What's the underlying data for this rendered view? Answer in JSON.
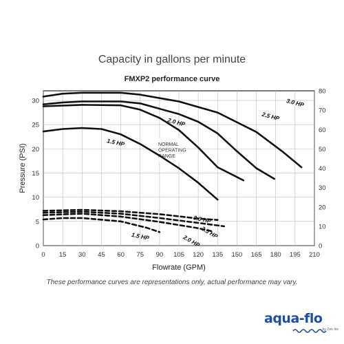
{
  "page": {
    "heading": "Capacity in gallons per minute",
    "disclaimer": "These performance curves are representations only, actual performance may vary.",
    "logo_text": "aqua-flo",
    "logo_sub": "by Zen Inc"
  },
  "chart_data": {
    "type": "line",
    "title": "FMXP2 performance curve",
    "xlabel": "Flowrate (GPM)",
    "ylabel": "Pressure (PSI)",
    "xlim": [
      0,
      210
    ],
    "ylim": [
      0,
      32
    ],
    "y2lim": [
      0,
      80
    ],
    "xticks": [
      0,
      15,
      30,
      45,
      60,
      75,
      90,
      105,
      120,
      135,
      150,
      165,
      180,
      195,
      210
    ],
    "yticks": [
      0,
      5,
      10,
      15,
      20,
      25,
      30
    ],
    "y2ticks": [
      0,
      10,
      20,
      30,
      40,
      50,
      60,
      70,
      80
    ],
    "grid": true,
    "range_label": [
      "NORMAL",
      "OPERATING",
      "RANGE"
    ],
    "series": [
      {
        "name": "3.0 HP",
        "style": "solid",
        "points": [
          [
            0,
            30.8
          ],
          [
            15,
            31.4
          ],
          [
            30,
            31.6
          ],
          [
            60,
            31.6
          ],
          [
            75,
            31.2
          ],
          [
            105,
            29.8
          ],
          [
            135,
            27.5
          ],
          [
            165,
            23.5
          ],
          [
            185,
            19.5
          ],
          [
            200,
            16.2
          ]
        ]
      },
      {
        "name": "2.5 HP",
        "style": "solid",
        "points": [
          [
            0,
            29.2
          ],
          [
            15,
            29.6
          ],
          [
            30,
            29.8
          ],
          [
            60,
            29.8
          ],
          [
            75,
            29.4
          ],
          [
            105,
            27.2
          ],
          [
            120,
            25.6
          ],
          [
            135,
            23.2
          ],
          [
            150,
            19.5
          ],
          [
            165,
            16.0
          ],
          [
            179,
            13.8
          ]
        ]
      },
      {
        "name": "2.0 HP",
        "style": "solid",
        "points": [
          [
            0,
            28.8
          ],
          [
            30,
            29.1
          ],
          [
            60,
            29.0
          ],
          [
            75,
            28.1
          ],
          [
            90,
            26.4
          ],
          [
            105,
            23.9
          ],
          [
            120,
            20.3
          ],
          [
            135,
            16.2
          ],
          [
            155,
            13.5
          ]
        ]
      },
      {
        "name": "1.5 HP",
        "style": "solid",
        "points": [
          [
            0,
            23.6
          ],
          [
            15,
            24.1
          ],
          [
            30,
            24.3
          ],
          [
            45,
            24.1
          ],
          [
            60,
            23.0
          ],
          [
            75,
            21.0
          ],
          [
            90,
            18.6
          ],
          [
            105,
            16.0
          ],
          [
            120,
            13.0
          ],
          [
            135,
            9.5
          ]
        ]
      },
      {
        "name": "3.0 HP",
        "style": "dashed",
        "points": [
          [
            0,
            7.2
          ],
          [
            30,
            7.4
          ],
          [
            60,
            7.1
          ],
          [
            90,
            6.5
          ],
          [
            120,
            5.6
          ],
          [
            135,
            5.3
          ]
        ]
      },
      {
        "name": "2.5 HP",
        "style": "dashed",
        "points": [
          [
            0,
            6.8
          ],
          [
            30,
            7.0
          ],
          [
            60,
            6.6
          ],
          [
            90,
            5.7
          ],
          [
            120,
            4.7
          ],
          [
            140,
            4.0
          ]
        ]
      },
      {
        "name": "2.0 HP",
        "style": "dashed",
        "points": [
          [
            0,
            6.3
          ],
          [
            30,
            6.6
          ],
          [
            60,
            6.0
          ],
          [
            90,
            4.9
          ],
          [
            120,
            3.6
          ],
          [
            130,
            3.0
          ]
        ]
      },
      {
        "name": "1.5 HP",
        "style": "dashed",
        "points": [
          [
            0,
            5.4
          ],
          [
            15,
            5.7
          ],
          [
            30,
            5.7
          ],
          [
            60,
            5.0
          ],
          [
            80,
            3.7
          ],
          [
            90,
            2.8
          ]
        ]
      }
    ],
    "labels": [
      "3.0 HP",
      "2.5 HP",
      "2.0 HP",
      "1.5 HP",
      "3.0 HP",
      "2.5 HP",
      "2.0 HP",
      "1.5 HP"
    ]
  }
}
